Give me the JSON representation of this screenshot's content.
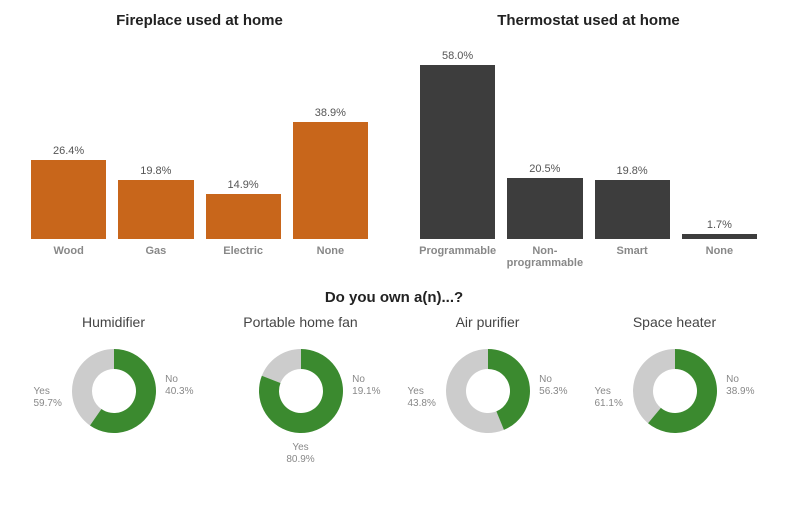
{
  "bar_charts": [
    {
      "title": "Fireplace used at home",
      "bar_color": "#c8661b",
      "text_color": "#555555",
      "label_color": "#888888",
      "ymax": 60,
      "categories": [
        "Wood",
        "Gas",
        "Electric",
        "None"
      ],
      "values": [
        26.4,
        19.8,
        14.9,
        38.9
      ],
      "value_labels": [
        "26.4%",
        "19.8%",
        "14.9%",
        "38.9%"
      ]
    },
    {
      "title": "Thermostat used at home",
      "bar_color": "#3d3d3d",
      "text_color": "#555555",
      "label_color": "#888888",
      "ymax": 60,
      "categories": [
        "Programmable",
        "Non-programmable",
        "Smart",
        "None"
      ],
      "values": [
        58.0,
        20.5,
        19.8,
        1.7
      ],
      "value_labels": [
        "58.0%",
        "20.5%",
        "19.8%",
        "1.7%"
      ]
    }
  ],
  "donut_section_title": "Do you own a(n)...?",
  "donut_yes_color": "#3b8a2f",
  "donut_no_color": "#cccccc",
  "donut_label_color": "#888888",
  "donuts": [
    {
      "title": "Humidifier",
      "yes": 59.7,
      "no": 40.3,
      "yes_label": "Yes\n59.7%",
      "no_label": "No\n40.3%",
      "yes_side": "left",
      "no_side": "right"
    },
    {
      "title": "Portable home fan",
      "yes": 80.9,
      "no": 19.1,
      "yes_label": "Yes\n80.9%",
      "no_label": "No\n19.1%",
      "yes_side": "bottom",
      "no_side": "right"
    },
    {
      "title": "Air purifier",
      "yes": 43.8,
      "no": 56.3,
      "yes_label": "Yes\n43.8%",
      "no_label": "No\n56.3%",
      "yes_side": "left",
      "no_side": "right"
    },
    {
      "title": "Space heater",
      "yes": 61.1,
      "no": 38.9,
      "yes_label": "Yes\n61.1%",
      "no_label": "No\n38.9%",
      "yes_side": "left",
      "no_side": "right"
    }
  ]
}
